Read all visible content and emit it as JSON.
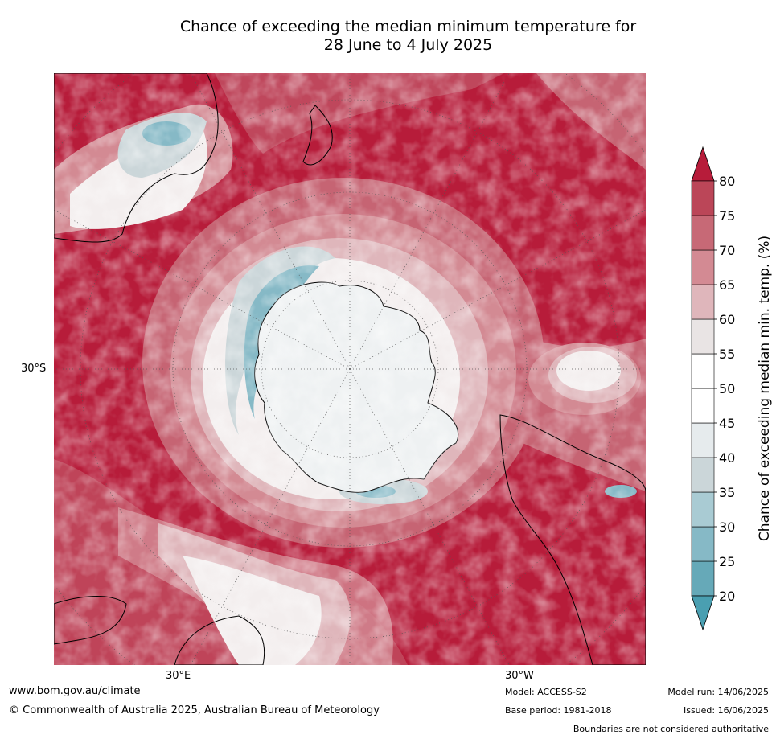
{
  "title": {
    "line1": "Chance of exceeding the median minimum temperature for",
    "line2": "28 June to 4 July 2025"
  },
  "map": {
    "projection": "south polar stereographic",
    "region": "Southern hemisphere centred on Antarctica",
    "labels": {
      "lat_left": "30°S",
      "lon_bottom_left": "30°E",
      "lon_bottom_right": "30°W"
    },
    "graticule": "dotted",
    "coastlines": true
  },
  "colorbar": {
    "label": "Chance of exceeding median min. temp. (%)",
    "ticks": [
      "20",
      "25",
      "30",
      "35",
      "40",
      "45",
      "50",
      "55",
      "60",
      "65",
      "70",
      "75",
      "80"
    ],
    "colors": [
      "#66a9b8",
      "#86b9c6",
      "#a9cbd3",
      "#cbd6d9",
      "#e6ebed",
      "#ffffff",
      "#ffffff",
      "#e9e4e4",
      "#dfb6bb",
      "#d38a93",
      "#c76976",
      "#bb4658"
    ],
    "under_color": "#4a9fb1",
    "over_color": "#b71c3a",
    "extend": "both"
  },
  "footer": {
    "url": "www.bom.gov.au/climate",
    "copyright": "© Commonwealth of Australia 2025, Australian Bureau of Meteorology",
    "model": "Model: ACCESS-S2",
    "base_period": "Base period: 1981-2018",
    "model_run": "Model run: 14/06/2025",
    "issued": "Issued: 16/06/2025",
    "disclaimer": "Boundaries are not considered authoritative"
  }
}
